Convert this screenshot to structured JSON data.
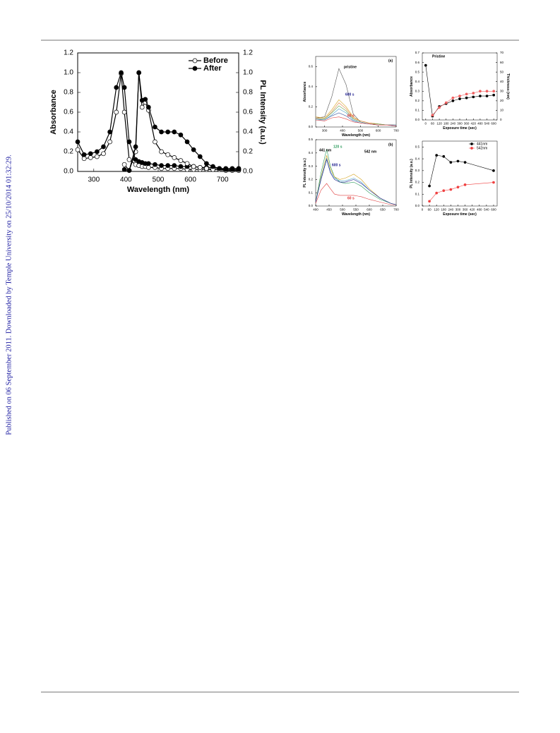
{
  "side_note": "Published on 06 September 2011. Downloaded by Temple University on 25/10/2014 01:32:29.",
  "chart_data": [
    {
      "type": "line",
      "xlabel": "Wavelength (nm)",
      "ylabel": "Absorbance",
      "y2label": "PL Intensity (a.u.)",
      "x": [
        250,
        270,
        290,
        310,
        330,
        350,
        370,
        385,
        395,
        410,
        430,
        440,
        450,
        460,
        470,
        490,
        510,
        530,
        550,
        570,
        590,
        610,
        630,
        650,
        670,
        690,
        710,
        730,
        750
      ],
      "xlim": [
        250,
        750
      ],
      "xticks": [
        300,
        400,
        500,
        600,
        700
      ],
      "ylim": [
        0,
        1.2
      ],
      "yticks": [
        {
          "value": 0,
          "label": "0.0"
        },
        0.2,
        0.4,
        0.6,
        0.8,
        {
          "value": 1,
          "label": "1.0"
        },
        1.2
      ],
      "y2lim": [
        0,
        1.2
      ],
      "y2ticks": [
        {
          "value": 0,
          "label": "0.0"
        },
        0.2,
        0.4,
        0.6,
        0.8,
        {
          "value": 1,
          "label": "1.0"
        },
        1.2
      ],
      "legend": "top-right",
      "series": [
        {
          "name": "Before",
          "color": "#000000",
          "marker": "open",
          "values": [
            0.22,
            0.13,
            0.14,
            0.15,
            0.18,
            0.3,
            0.6,
            0.99,
            0.6,
            0.12,
            0.07,
            0.06,
            0.05,
            0.05,
            0.04,
            0.04,
            0.03,
            0.03,
            0.03,
            0.03,
            0.02,
            0.02,
            0.02,
            0.02,
            0.02,
            0.02,
            0.02,
            0.02,
            0.02
          ]
        },
        {
          "name": "After",
          "color": "#000000",
          "marker": "filled",
          "values": [
            0.3,
            0.17,
            0.18,
            0.2,
            0.25,
            0.4,
            0.85,
            1.0,
            0.85,
            0.3,
            0.12,
            0.1,
            0.09,
            0.08,
            0.08,
            0.07,
            0.06,
            0.06,
            0.06,
            0.05,
            0.05,
            0.05,
            0.04,
            0.04,
            0.04,
            0.03,
            0.03,
            0.03,
            0.03
          ]
        },
        {
          "color": "#000000",
          "marker": "open",
          "axis": "y2",
          "values": [
            null,
            null,
            null,
            null,
            null,
            null,
            null,
            null,
            0.07,
            0.01,
            0.2,
            1.0,
            0.65,
            0.7,
            0.62,
            0.3,
            0.2,
            0.17,
            0.14,
            0.11,
            0.08,
            0.05,
            0.04,
            0.03,
            0.02,
            0.02,
            0.01,
            0.01,
            0.01
          ]
        },
        {
          "color": "#000000",
          "marker": "filled",
          "axis": "y2",
          "values": [
            null,
            null,
            null,
            null,
            null,
            null,
            null,
            null,
            0.02,
            0.01,
            0.25,
            1.0,
            0.72,
            0.73,
            0.65,
            0.45,
            0.4,
            0.4,
            0.4,
            0.37,
            0.3,
            0.22,
            0.15,
            0.08,
            0.05,
            0.03,
            0.02,
            0.02,
            0.02
          ]
        }
      ]
    },
    {
      "type": "line",
      "xlabel": "Wavelength (nm)",
      "ylabel": "Absorbance",
      "x": [
        250,
        300,
        340,
        380,
        420,
        460,
        500,
        550,
        600,
        650,
        700
      ],
      "xlim": [
        250,
        700
      ],
      "xticks": [
        300,
        400,
        500,
        600,
        700
      ],
      "ylim": [
        0,
        0.7
      ],
      "yticks": [
        {
          "value": 0,
          "label": "0.0"
        },
        0.2,
        0.4,
        0.6
      ],
      "annotations": [
        {
          "text": "pristine",
          "color": "#000000"
        },
        {
          "text": "600 s",
          "color": "#1a1a8c"
        },
        {
          "text": "60 s",
          "color": "#e03030"
        },
        {
          "text": "(a)",
          "color": "#000000"
        }
      ],
      "series": [
        {
          "color": "#555555",
          "marker": "none",
          "values": [
            0.09,
            0.1,
            0.3,
            0.58,
            0.42,
            0.13,
            0.05,
            0.03,
            0.02,
            0.02,
            0.01
          ]
        },
        {
          "color": "#d4a017",
          "marker": "none",
          "values": [
            0.1,
            0.09,
            0.17,
            0.27,
            0.2,
            0.1,
            0.06,
            0.04,
            0.03,
            0.02,
            0.02
          ]
        },
        {
          "color": "#e08040",
          "marker": "none",
          "values": [
            0.09,
            0.08,
            0.15,
            0.24,
            0.18,
            0.09,
            0.06,
            0.04,
            0.03,
            0.02,
            0.02
          ]
        },
        {
          "color": "#6aa84f",
          "marker": "none",
          "values": [
            0.08,
            0.08,
            0.14,
            0.21,
            0.16,
            0.08,
            0.05,
            0.03,
            0.03,
            0.02,
            0.02
          ]
        },
        {
          "color": "#4aa3c8",
          "marker": "none",
          "values": [
            0.08,
            0.07,
            0.12,
            0.18,
            0.14,
            0.07,
            0.05,
            0.03,
            0.02,
            0.02,
            0.02
          ]
        },
        {
          "color": "#3d5a9e",
          "marker": "none",
          "values": [
            0.07,
            0.07,
            0.11,
            0.14,
            0.11,
            0.06,
            0.04,
            0.03,
            0.02,
            0.02,
            0.02
          ]
        },
        {
          "color": "#e04040",
          "marker": "none",
          "values": [
            0.07,
            0.06,
            0.09,
            0.1,
            0.08,
            0.05,
            0.04,
            0.03,
            0.02,
            0.02,
            0.01
          ]
        }
      ]
    },
    {
      "type": "line",
      "xlabel": "Exposure time (sec)",
      "ylabel": "Absorbance",
      "y2label": "Thickness (nm)",
      "x": [
        0,
        60,
        120,
        180,
        240,
        300,
        360,
        420,
        480,
        540,
        600
      ],
      "xlim": [
        -30,
        630
      ],
      "xticks": [
        0,
        60,
        120,
        180,
        240,
        300,
        360,
        420,
        480,
        540,
        600
      ],
      "ylim": [
        0,
        0.7
      ],
      "yticks": [
        {
          "value": 0,
          "label": "0.0"
        },
        0.1,
        0.2,
        0.3,
        0.4,
        0.5,
        0.6,
        0.7
      ],
      "y2lim": [
        0,
        70
      ],
      "y2ticks": [
        0,
        10,
        20,
        30,
        40,
        50,
        60,
        70
      ],
      "annotations": [
        {
          "text": "Pristine",
          "color": "#000000"
        }
      ],
      "series": [
        {
          "color": "#000000",
          "marker": "filled",
          "values": [
            0.57,
            0.04,
            0.14,
            0.17,
            0.2,
            0.22,
            0.23,
            0.24,
            0.25,
            0.25,
            0.26
          ]
        },
        {
          "color": "#f06060",
          "marker": "filled",
          "axis": "y2",
          "values": [
            null,
            5,
            13,
            18,
            23,
            25,
            27,
            28,
            30,
            30,
            30
          ]
        }
      ]
    },
    {
      "type": "line",
      "xlabel": "Wavelength (nm)",
      "ylabel": "PL Intensity (a.u.)",
      "x": [
        400,
        420,
        441,
        455,
        470,
        490,
        510,
        542,
        570,
        600,
        640,
        680,
        700
      ],
      "xlim": [
        400,
        700
      ],
      "xticks": [
        400,
        450,
        500,
        550,
        600,
        650,
        700
      ],
      "ylim": [
        0,
        0.5
      ],
      "yticks": [
        {
          "value": 0,
          "label": "0.0"
        },
        0.1,
        0.2,
        0.3,
        0.4,
        0.5
      ],
      "annotations": [
        {
          "text": "441 nm",
          "color": "#000000"
        },
        {
          "text": "120 s",
          "color": "#2a9a5a"
        },
        {
          "text": "600 s",
          "color": "#1a1a8c"
        },
        {
          "text": "542 nm",
          "color": "#000000"
        },
        {
          "text": "60 s",
          "color": "#e03030"
        },
        {
          "text": "(b)",
          "color": "#000000"
        }
      ],
      "series": [
        {
          "color": "#e04040",
          "marker": "none",
          "values": [
            0.02,
            0.12,
            0.17,
            0.13,
            0.09,
            0.08,
            0.08,
            0.08,
            0.07,
            0.05,
            0.03,
            0.01,
            0.01
          ]
        },
        {
          "color": "#2a9a5a",
          "marker": "none",
          "values": [
            0.03,
            0.25,
            0.43,
            0.3,
            0.22,
            0.18,
            0.17,
            0.18,
            0.15,
            0.1,
            0.05,
            0.02,
            0.01
          ]
        },
        {
          "color": "#d4a017",
          "marker": "none",
          "values": [
            0.03,
            0.22,
            0.38,
            0.28,
            0.22,
            0.2,
            0.21,
            0.24,
            0.2,
            0.13,
            0.06,
            0.02,
            0.01
          ]
        },
        {
          "color": "#4aa3c8",
          "marker": "none",
          "values": [
            0.03,
            0.21,
            0.36,
            0.26,
            0.21,
            0.19,
            0.19,
            0.21,
            0.18,
            0.12,
            0.06,
            0.02,
            0.01
          ]
        },
        {
          "color": "#1a1a8c",
          "marker": "none",
          "values": [
            0.03,
            0.2,
            0.35,
            0.25,
            0.2,
            0.18,
            0.18,
            0.2,
            0.17,
            0.12,
            0.06,
            0.02,
            0.01
          ]
        }
      ]
    },
    {
      "type": "line",
      "xlabel": "Exposure time (sec)",
      "ylabel": "PL Intensity (a.u.)",
      "x": [
        60,
        120,
        180,
        240,
        300,
        360,
        600
      ],
      "xlim": [
        0,
        630
      ],
      "xticks": [
        0,
        60,
        120,
        180,
        240,
        300,
        360,
        420,
        480,
        540,
        600
      ],
      "ylim": [
        0,
        0.55
      ],
      "yticks": [
        {
          "value": 0,
          "label": "0.0"
        },
        0.1,
        0.2,
        0.3,
        0.4,
        0.5
      ],
      "legend": "top-right",
      "series": [
        {
          "name": "441nm",
          "color": "#000000",
          "marker": "filled",
          "values": [
            0.17,
            0.43,
            0.42,
            0.37,
            0.38,
            0.37,
            0.3
          ]
        },
        {
          "name": "542nm",
          "color": "#f04040",
          "marker": "filled",
          "values": [
            0.04,
            0.11,
            0.13,
            0.14,
            0.16,
            0.18,
            0.2
          ]
        }
      ]
    }
  ]
}
